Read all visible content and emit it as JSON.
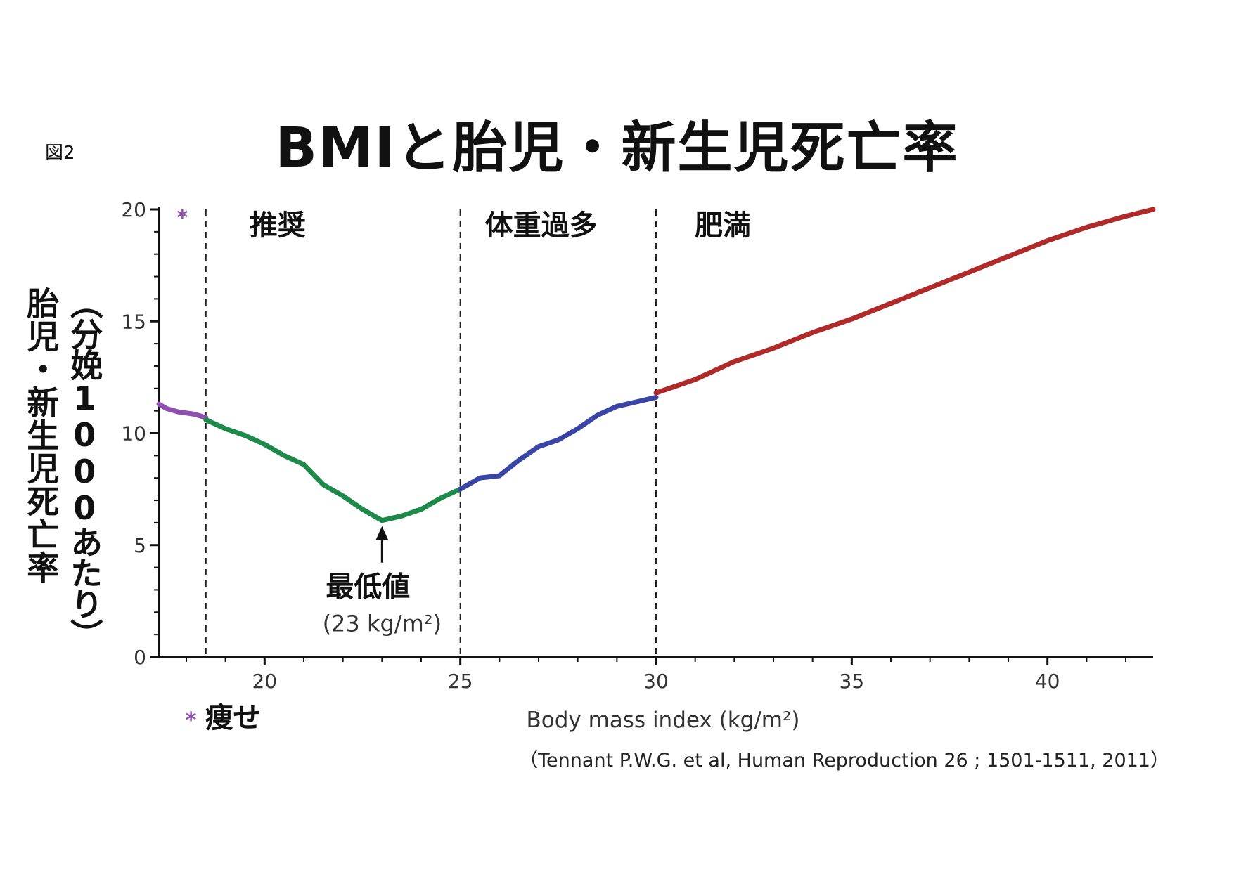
{
  "figure_label": "図2",
  "title": "BMIと胎児・新生児死亡率",
  "citation": "（Tennant P.W.G. et al, Human Reproduction 26 ; 1501-1511, 2011）",
  "chart_data": {
    "type": "line",
    "title": "BMIと胎児・新生児死亡率",
    "xlabel": "Body mass index (kg/m²)",
    "ylabel_main": "胎児・新生児死亡率",
    "ylabel_unit": "（分娩1000あたり）",
    "xlim": [
      17.3,
      42.7
    ],
    "ylim": [
      0,
      20
    ],
    "x_ticks": [
      20,
      25,
      30,
      35,
      40
    ],
    "x_tick_labels": [
      "20",
      "25",
      "30",
      "35",
      "40"
    ],
    "y_ticks": [
      0,
      5,
      10,
      15,
      20
    ],
    "y_tick_labels": [
      "0",
      "5",
      "10",
      "15",
      "20"
    ],
    "boundaries": [
      18.5,
      25,
      30
    ],
    "regions": [
      {
        "label": "推奨",
        "from": 18.5,
        "to": 25
      },
      {
        "label": "体重過多",
        "from": 25,
        "to": 30
      },
      {
        "label": "肥満",
        "from": 30,
        "to": 42.7
      }
    ],
    "underweight_marker": "*",
    "underweight_label": "痩せ",
    "annotation": {
      "x": 23,
      "y": 6.1,
      "label": "最低値",
      "sublabel": "(23 kg/m²)"
    },
    "series": [
      {
        "color": "#8e4fb0",
        "x": [
          17.3,
          17.5,
          17.8,
          18.2,
          18.5
        ],
        "y": [
          11.3,
          11.1,
          10.95,
          10.85,
          10.7
        ]
      },
      {
        "color": "#1e8a4a",
        "x": [
          18.5,
          19.0,
          19.5,
          20.0,
          20.5,
          21.0,
          21.5,
          22.0,
          22.5,
          23.0,
          23.5,
          24.0,
          24.5,
          25.0
        ],
        "y": [
          10.6,
          10.2,
          9.9,
          9.5,
          9.0,
          8.6,
          7.7,
          7.2,
          6.6,
          6.1,
          6.3,
          6.6,
          7.1,
          7.5
        ]
      },
      {
        "color": "#3a45a8",
        "x": [
          25.0,
          25.5,
          26.0,
          26.5,
          27.0,
          27.5,
          28.0,
          28.5,
          29.0,
          29.5,
          30.0
        ],
        "y": [
          7.5,
          8.0,
          8.1,
          8.8,
          9.4,
          9.7,
          10.2,
          10.8,
          11.2,
          11.4,
          11.6
        ]
      },
      {
        "color": "#b02a2a",
        "x": [
          30.0,
          31.0,
          32.0,
          33.0,
          34.0,
          35.0,
          36.0,
          37.0,
          38.0,
          39.0,
          40.0,
          41.0,
          42.0,
          42.7
        ],
        "y": [
          11.8,
          12.4,
          13.2,
          13.8,
          14.5,
          15.1,
          15.8,
          16.5,
          17.2,
          17.9,
          18.6,
          19.2,
          19.7,
          20.0
        ]
      }
    ]
  }
}
